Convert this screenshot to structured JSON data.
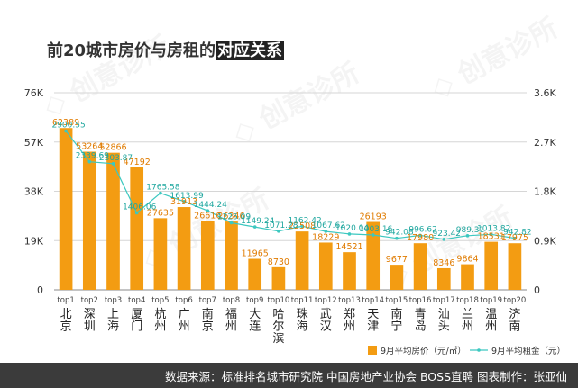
{
  "title": {
    "prefix": "前20城市房价与房租的",
    "highlight": "对应关系"
  },
  "footer": {
    "text": "数据来源：标准排名城市研究院 中国房地产业协会 BOSS直聘  图表制作：张亚仙"
  },
  "chart_data": {
    "type": "bar",
    "categories": [
      "北京",
      "深圳",
      "上海",
      "厦门",
      "杭州",
      "广州",
      "南京",
      "福州",
      "大连",
      "哈尔滨",
      "珠海",
      "武汉",
      "郑州",
      "天津",
      "南宁",
      "青岛",
      "汕头",
      "兰州",
      "温州",
      "济南"
    ],
    "rank_labels": [
      "top1",
      "top2",
      "top3",
      "top4",
      "top5",
      "top6",
      "top7",
      "top8",
      "top9",
      "top10",
      "top11",
      "top12",
      "top13",
      "top14",
      "top15",
      "top16",
      "top17",
      "top18",
      "top19",
      "top20"
    ],
    "series": [
      {
        "name": "9月平均房价（元/㎡）",
        "type": "bar",
        "axis": "left",
        "color": "#F39C12",
        "values": [
          62389,
          53264,
          52866,
          47192,
          27635,
          31913,
          26616,
          26346,
          11965,
          8730,
          22508,
          18229,
          14521,
          26193,
          9677,
          17980,
          8346,
          9864,
          18531,
          17975
        ]
      },
      {
        "name": "9月平均租金（元）",
        "type": "line",
        "axis": "right",
        "color": "#3CC8C0",
        "values": [
          2900.55,
          2339.69,
          2303.87,
          1406.06,
          1765.58,
          1613.99,
          1444.24,
          1225.09,
          1149.24,
          1071.28,
          1162.42,
          1067.62,
          1020.04,
          1003.16,
          942.08,
          996.62,
          923.42,
          989.31,
          1013.82,
          942.82
        ]
      }
    ],
    "y_left": {
      "min": 0,
      "max": 76000,
      "ticks": [
        0,
        19000,
        38000,
        57000,
        76000
      ],
      "tick_labels": [
        "0",
        "19K",
        "38K",
        "57K",
        "76K"
      ]
    },
    "y_right": {
      "min": 0,
      "max": 3600,
      "ticks": [
        0,
        900,
        1800,
        2700,
        3600
      ],
      "tick_labels": [
        "0",
        "0.9K",
        "1.8K",
        "2.7K",
        "3.6K"
      ]
    },
    "grid": true,
    "legend": "bottom-right"
  }
}
